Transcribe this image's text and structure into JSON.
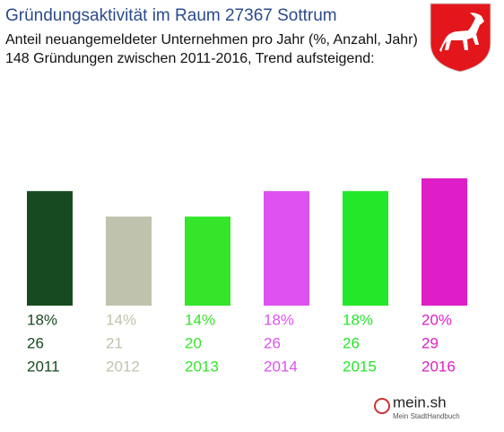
{
  "chart_data": {
    "type": "bar",
    "title": "Gründungsaktivität im Raum 27367 Sottrum",
    "subtitle": [
      "Anteil neuangemeldeter Unternehmen pro Jahr (%, Anzahl, Jahr)",
      "148 Gründungen zwischen 2011-2016, Trend aufsteigend:"
    ],
    "categories": [
      "2011",
      "2012",
      "2013",
      "2014",
      "2015",
      "2016"
    ],
    "values": [
      18,
      14,
      14,
      18,
      18,
      20
    ],
    "value_labels": [
      "18%",
      "14%",
      "14%",
      "18%",
      "18%",
      "20%"
    ],
    "counts": [
      26,
      21,
      20,
      26,
      26,
      29
    ],
    "colors": [
      "#174a1f",
      "#bfc3ad",
      "#34e52a",
      "#dd52f0",
      "#22e829",
      "#de1ec6"
    ],
    "logo": {
      "name": "mein.sh",
      "tagline": "Mein StadtHandbuch"
    }
  }
}
